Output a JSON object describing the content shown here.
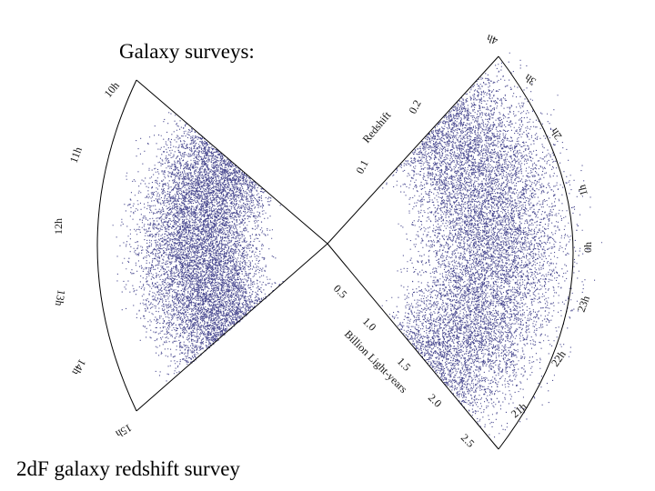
{
  "title": "Galaxy surveys:",
  "caption": "2dF galaxy redshift survey",
  "colors": {
    "points": "#2b2b7e",
    "frame": "#000000",
    "background": "#ffffff"
  },
  "redshift_axis": {
    "label": "Redshift",
    "ticks": [
      "0.1",
      "0.2"
    ]
  },
  "distance_axis": {
    "label": "Billion Light-years",
    "ticks": [
      "0.5",
      "1.0",
      "1.5",
      "2.0",
      "2.5"
    ]
  },
  "ra_left": [
    "10h",
    "11h",
    "12h",
    "13h",
    "14h",
    "15h"
  ],
  "ra_right": [
    "4h",
    "3h",
    "2h",
    "1h",
    "0h",
    "23h",
    "22h",
    "21h"
  ]
}
